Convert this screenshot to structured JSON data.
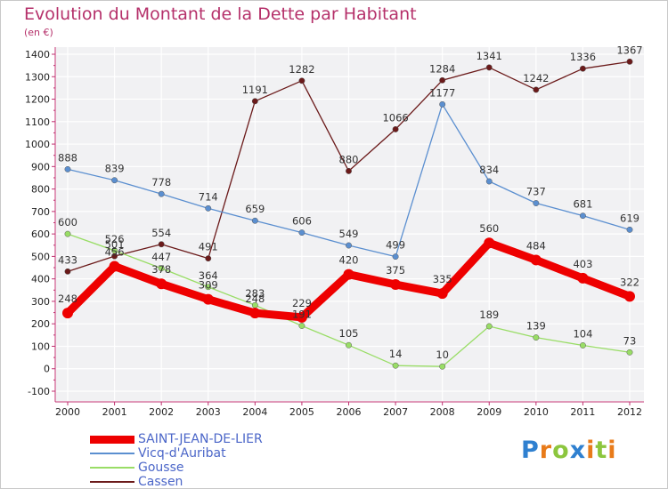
{
  "chart_data": {
    "type": "line",
    "title": "Evolution du Montant de la Dette par Habitant",
    "subtitle": "(en €)",
    "categories": [
      "2000",
      "2001",
      "2002",
      "2003",
      "2004",
      "2005",
      "2006",
      "2007",
      "2008",
      "2009",
      "2010",
      "2011",
      "2012"
    ],
    "ylim": [
      -100,
      1400
    ],
    "yticks": [
      -100,
      0,
      100,
      200,
      300,
      400,
      500,
      600,
      700,
      800,
      900,
      1000,
      1100,
      1200,
      1300,
      1400
    ],
    "grid": true,
    "legend_position": "bottom-left",
    "series": [
      {
        "name": "SAINT-JEAN-DE-LIER",
        "color": "#ee0000",
        "values": [
          248,
          456,
          378,
          309,
          248,
          229,
          420,
          375,
          335,
          560,
          484,
          403,
          322
        ]
      },
      {
        "name": "Vicq-d'Auribat",
        "color": "#5b8fd0",
        "values": [
          888,
          839,
          778,
          714,
          659,
          606,
          549,
          499,
          1177,
          834,
          737,
          681,
          619
        ]
      },
      {
        "name": "Gousse",
        "color": "#99dd66",
        "values": [
          600,
          526,
          447,
          364,
          283,
          191,
          105,
          14,
          10,
          189,
          139,
          104,
          73
        ]
      },
      {
        "name": "Cassen",
        "color": "#6b1a1a",
        "values": [
          433,
          501,
          554,
          491,
          1191,
          1282,
          880,
          1066,
          1284,
          1341,
          1242,
          1336,
          1367
        ]
      }
    ]
  },
  "brand": {
    "letters": [
      "P",
      "r",
      "o",
      "x",
      "i",
      "t",
      "i"
    ],
    "colors": [
      "#2f80d0",
      "#e87b1a",
      "#8cc63e",
      "#2f80d0",
      "#e87b1a",
      "#8cc63e",
      "#e87b1a"
    ]
  }
}
